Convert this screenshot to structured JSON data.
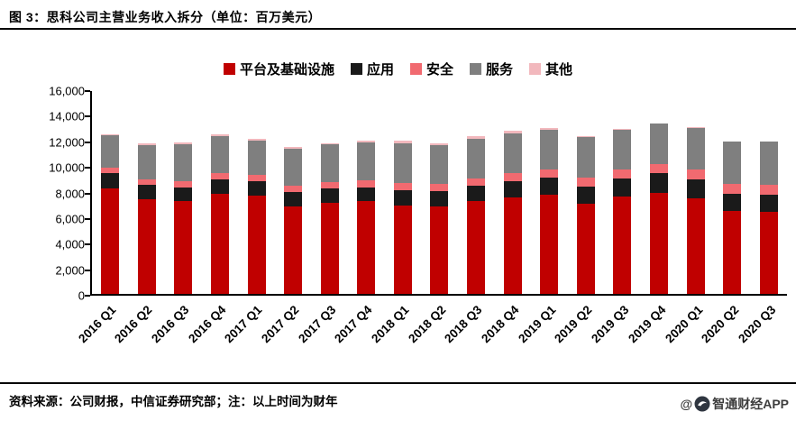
{
  "header": {
    "title": "图 3：思科公司主营业务收入拆分（单位：百万美元）"
  },
  "footer": {
    "source_note": "资料来源：公司财报，中信证券研究部；注：以上时间为财年",
    "watermark_prefix": "@",
    "watermark_name": "智通财经APP"
  },
  "chart_data": {
    "type": "bar",
    "stacked": true,
    "title": "思科公司主营业务收入拆分（单位：百万美元）",
    "xlabel": "",
    "ylabel": "",
    "ylim": [
      0,
      16000
    ],
    "yticks": [
      0,
      2000,
      4000,
      6000,
      8000,
      10000,
      12000,
      14000,
      16000
    ],
    "grid": false,
    "legend_position": "top",
    "categories": [
      "2016 Q1",
      "2016 Q2",
      "2016 Q3",
      "2016 Q4",
      "2017 Q1",
      "2017 Q2",
      "2017 Q3",
      "2017 Q4",
      "2018 Q1",
      "2018 Q2",
      "2018 Q3",
      "2018 Q4",
      "2019 Q1",
      "2019 Q2",
      "2019 Q3",
      "2019 Q4",
      "2020 Q1",
      "2020 Q2",
      "2020 Q3"
    ],
    "series": [
      {
        "name": "平台及基础设施",
        "color": "#c00000",
        "values": [
          8300,
          7500,
          7300,
          7900,
          7750,
          6900,
          7200,
          7300,
          7000,
          6900,
          7300,
          7600,
          7800,
          7100,
          7650,
          8000,
          7550,
          6550,
          6450
        ]
      },
      {
        "name": "应用",
        "color": "#1a1a1a",
        "values": [
          1200,
          1100,
          1100,
          1100,
          1150,
          1150,
          1100,
          1100,
          1200,
          1200,
          1250,
          1300,
          1350,
          1340,
          1430,
          1500,
          1500,
          1350,
          1360
        ]
      },
      {
        "name": "安全",
        "color": "#f16a70",
        "values": [
          450,
          450,
          500,
          500,
          500,
          500,
          550,
          550,
          550,
          550,
          550,
          600,
          650,
          700,
          700,
          715,
          750,
          750,
          775
        ]
      },
      {
        "name": "服务",
        "color": "#7f7f7f",
        "values": [
          2550,
          2700,
          2900,
          2950,
          2700,
          2900,
          2950,
          3000,
          3150,
          3100,
          3150,
          3150,
          3150,
          3200,
          3170,
          3200,
          3300,
          3350,
          3400
        ]
      },
      {
        "name": "其他",
        "color": "#f2b8bd",
        "values": [
          100,
          100,
          150,
          150,
          150,
          150,
          100,
          150,
          200,
          150,
          200,
          200,
          100,
          100,
          30,
          15,
          50,
          20,
          15
        ]
      }
    ]
  }
}
